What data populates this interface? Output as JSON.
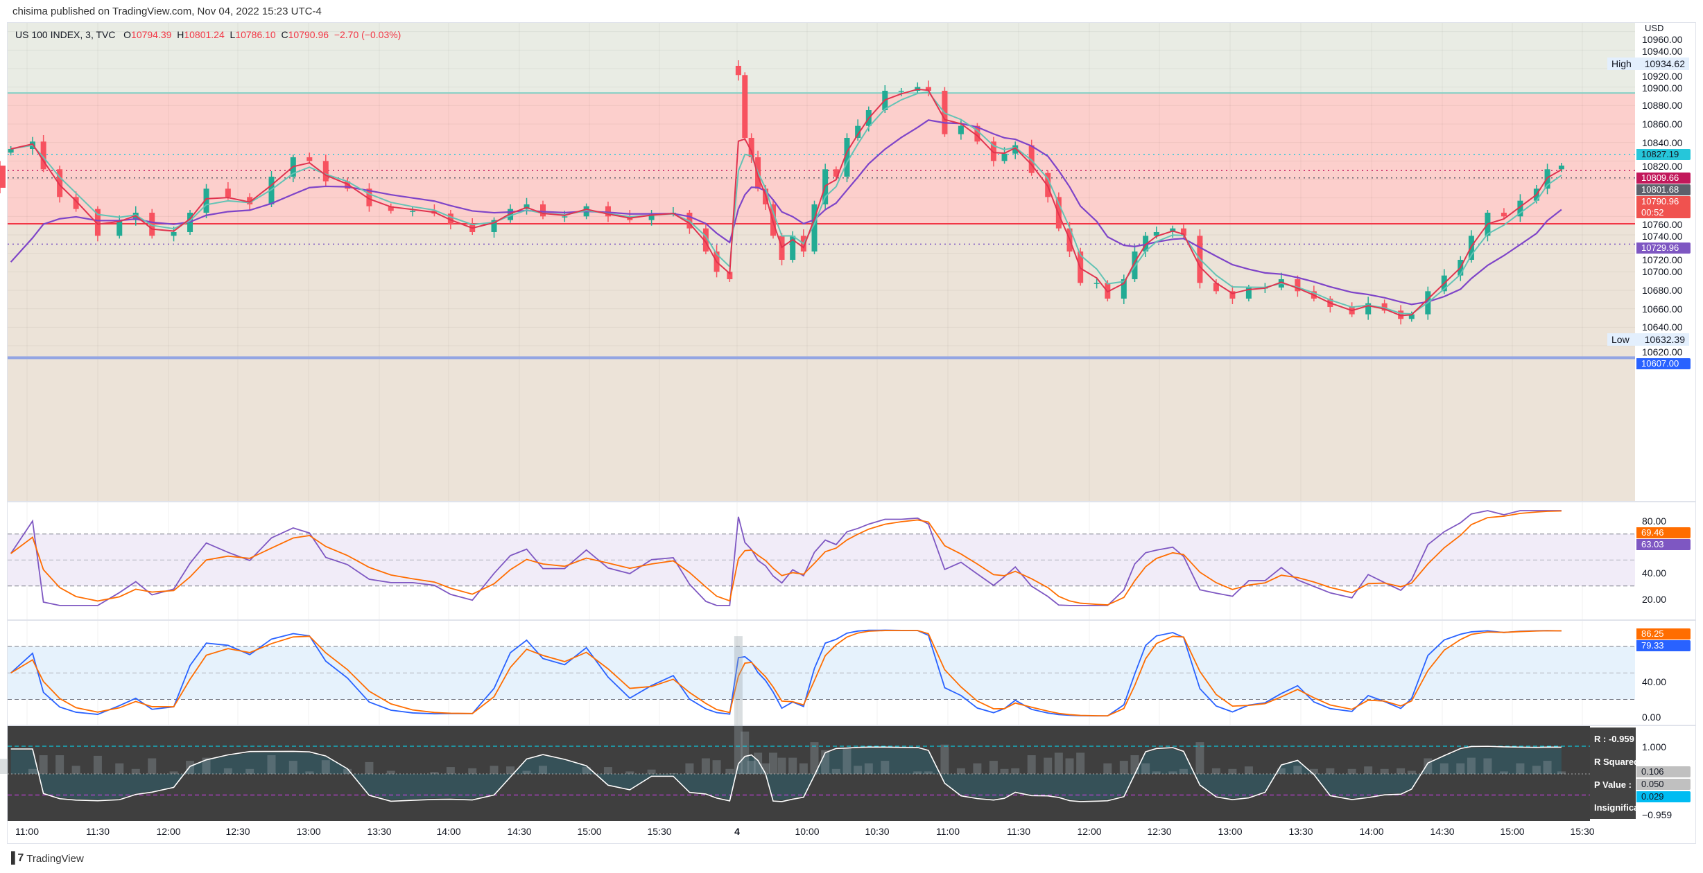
{
  "header": {
    "published": "chisima published on TradingView.com, Nov 04, 2022 15:23 UTC-4"
  },
  "legend": {
    "symbol": "US 100 INDEX, 3, TVC",
    "o_label": "O",
    "o": "10794.39",
    "h_label": "H",
    "h": "10801.24",
    "l_label": "L",
    "l": "10786.10",
    "c_label": "C",
    "c": "10790.96",
    "change": "−2.70 (−0.03%)"
  },
  "price_axis": {
    "currency": "USD",
    "ticks": [
      "10960.00",
      "10940.00",
      "10920.00",
      "10900.00",
      "10880.00",
      "10860.00",
      "10840.00",
      "10820.00",
      "10760.00",
      "10740.00",
      "10720.00",
      "10700.00",
      "10680.00",
      "10660.00",
      "10640.00",
      "10620.00"
    ],
    "high": {
      "label": "High",
      "value": "10934.62"
    },
    "low": {
      "label": "Low",
      "value": "10632.39"
    },
    "tags": [
      {
        "value": "10827.19",
        "color": "#26c6da",
        "text": "#131722"
      },
      {
        "value": "10809.66",
        "color": "#c2185b",
        "text": "#ffffff"
      },
      {
        "value": "10801.68",
        "color": "#5d606b",
        "text": "#ffffff"
      },
      {
        "value": "10790.96",
        "sub": "00:52",
        "color": "#f0524f",
        "text": "#ffffff"
      },
      {
        "value": "10729.96",
        "color": "#7e57c2",
        "text": "#ffffff"
      },
      {
        "value": "10607.00",
        "color": "#2962ff",
        "text": "#ffffff"
      }
    ]
  },
  "levels": {
    "zone_top": 10893.6,
    "zone_mid": 10752,
    "blue_line": 10607
  },
  "rsi_axis": {
    "ticks": [
      "80.00",
      "40.00",
      "20.00"
    ],
    "tags": [
      {
        "value": "69.46",
        "color": "#ff6d00"
      },
      {
        "value": "63.03",
        "color": "#7e57c2"
      }
    ]
  },
  "stoch_axis": {
    "ticks": [
      "40.00",
      "0.00"
    ],
    "tags": [
      {
        "value": "86.25",
        "color": "#ff6d00"
      },
      {
        "value": "79.33",
        "color": "#2962ff"
      }
    ]
  },
  "corr_axis": {
    "ticks": [
      "1.000",
      "−0.959"
    ],
    "tags": [
      {
        "value": "0.106",
        "color": "#c0c0c0"
      },
      {
        "value": "0.050",
        "color": "#c0c0c0"
      },
      {
        "value": "0.029",
        "color": "#00bcf2"
      }
    ]
  },
  "corr_tooltip": [
    "R : -0.959",
    "R Squared",
    "P Value :",
    "Insignificant"
  ],
  "time_axis": [
    "11:00",
    "11:30",
    "12:00",
    "12:30",
    "13:00",
    "13:30",
    "14:00",
    "14:30",
    "15:00",
    "15:30",
    "4",
    "10:00",
    "10:30",
    "11:00",
    "11:30",
    "12:00",
    "12:30",
    "13:00",
    "13:30",
    "14:00",
    "14:30",
    "15:00",
    "15:30"
  ],
  "footer": {
    "brand": "TradingView",
    "logo": "17"
  },
  "colors": {
    "up": "#22ab94",
    "down": "#f7525f",
    "ema_fast": "#e0344f",
    "ema_slow": "#63c3b5",
    "ema_long": "#7e44c8"
  },
  "chart_data": {
    "type": "candlestick",
    "closes": [
      10833,
      10841,
      10811,
      10781,
      10768,
      10739,
      10756,
      10764,
      10739,
      10743,
      10764,
      10790,
      10781,
      10773,
      10803,
      10824,
      10820,
      10798,
      10790,
      10771,
      10766,
      10766,
      10763,
      10752,
      10743,
      10756,
      10768,
      10773,
      10760,
      10760,
      10771,
      10760,
      10756,
      10763,
      10764,
      10747,
      10722,
      10700,
      10692,
      10913,
      10845,
      10824,
      10790,
      10773,
      10739,
      10713,
      10739,
      10722,
      10773,
      10811,
      10803,
      10845,
      10858,
      10875,
      10896,
      10896,
      10900,
      10896,
      10849,
      10858,
      10841,
      10820,
      10828,
      10837,
      10807,
      10781,
      10747,
      10722,
      10688,
      10688,
      10671,
      10692,
      10722,
      10739,
      10743,
      10747,
      10739,
      10688,
      10679,
      10671,
      10683,
      10683,
      10692,
      10679,
      10671,
      10662,
      10654,
      10666,
      10658,
      10649,
      10654,
      10679,
      10696,
      10713,
      10739,
      10764,
      10760,
      10777,
      10790,
      10811,
      10815,
      10791
    ]
  }
}
